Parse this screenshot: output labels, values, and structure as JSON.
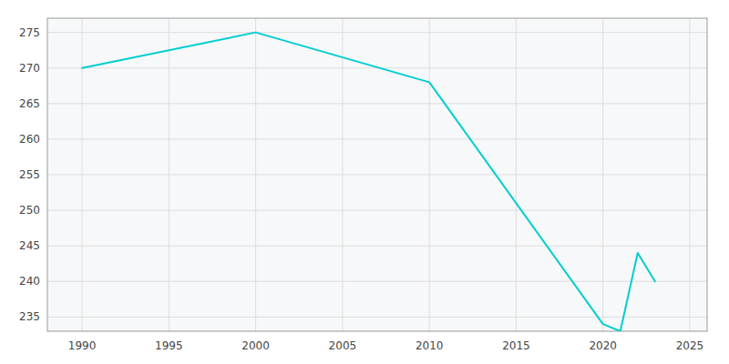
{
  "chart_data": {
    "type": "line",
    "x": [
      1990,
      2000,
      2010,
      2020,
      2021,
      2022,
      2023
    ],
    "values": [
      270,
      275,
      268,
      234,
      233,
      244,
      240
    ],
    "color": "#00CED1",
    "xlim": [
      1988,
      2026
    ],
    "ylim": [
      233,
      277
    ],
    "xticks": [
      1990,
      1995,
      2000,
      2005,
      2010,
      2015,
      2020,
      2025
    ],
    "yticks": [
      235,
      240,
      245,
      250,
      255,
      260,
      265,
      270,
      275
    ],
    "grid": true
  }
}
